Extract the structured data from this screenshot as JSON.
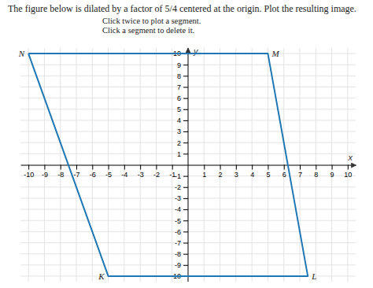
{
  "chart_data": {
    "type": "line",
    "title": "The figure below is dilated by a factor of 5/4 centered at the origin. Plot the resulting image.",
    "subtitle": [
      "Click twice to plot a segment.",
      "Click a segment to delete it."
    ],
    "x_label": "x",
    "y_label": "y",
    "x": [
      -10.0,
      5.0,
      7.5,
      -5.0,
      -10.0
    ],
    "values": [
      10.0,
      10.0,
      -10.0,
      -10.0,
      10.0
    ],
    "annotations": [
      {
        "text": "N",
        "x": -10.0,
        "y": 10.0
      },
      {
        "text": "M",
        "x": 5.0,
        "y": 10.0
      },
      {
        "text": "K",
        "x": -5.0,
        "y": -10.0
      },
      {
        "text": "L",
        "x": 7.5,
        "y": -10.0
      }
    ],
    "xlim": [
      -10.5,
      10.5
    ],
    "ylim": [
      -10.5,
      10.5
    ],
    "xticks": [
      -10,
      -9,
      -8,
      -7,
      -6,
      -5,
      -4,
      -3,
      -2,
      -1,
      1,
      2,
      3,
      4,
      5,
      6,
      7,
      8,
      9,
      10
    ],
    "yticks": [
      -10,
      -9,
      -8,
      -7,
      -6,
      -5,
      -4,
      -3,
      -2,
      -1,
      1,
      2,
      3,
      4,
      5,
      6,
      7,
      8,
      9,
      10
    ],
    "grid": true
  }
}
